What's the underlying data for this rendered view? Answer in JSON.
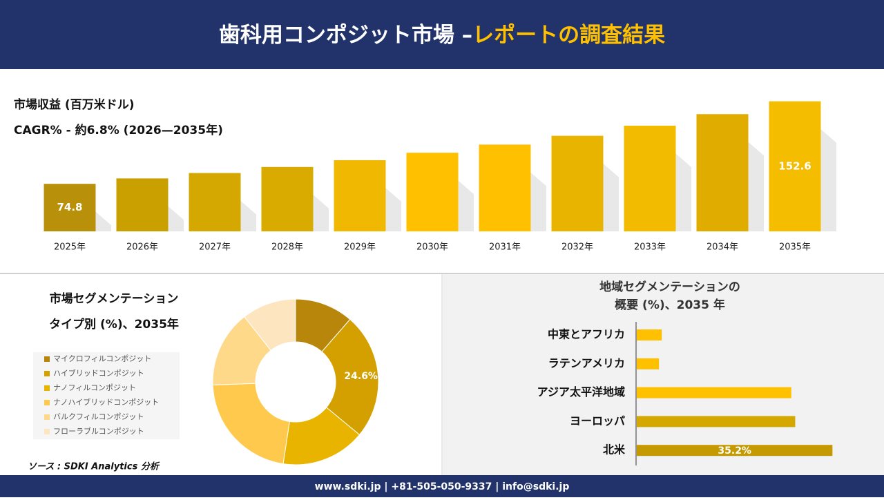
{
  "header": {
    "title_main": "歯科用コンポジット市場 –",
    "title_highlight": "レポートの調査結果"
  },
  "chart_data": [
    {
      "type": "bar",
      "title": "市場収益 (百万米ドル)",
      "subtitle": "CAGR% - 約6.8% (2026—2035年)",
      "categories": [
        "2025年",
        "2026年",
        "2027年",
        "2028年",
        "2029年",
        "2030年",
        "2031年",
        "2032年",
        "2033年",
        "2034年",
        "2035年"
      ],
      "values": [
        74.8,
        79.9,
        85.0,
        90.7,
        97.1,
        104.1,
        111.8,
        120.1,
        129.6,
        140.5,
        152.6
      ],
      "value_labels": [
        "74.8",
        null,
        null,
        null,
        null,
        null,
        null,
        null,
        null,
        null,
        "152.6"
      ],
      "colors": [
        "#b8900a",
        "#c9a000",
        "#d4a800",
        "#d9ab00",
        "#f0b800",
        "#ffc000",
        "#ffc000",
        "#e8b400",
        "#f2bb00",
        "#e0ac00",
        "#f5bd00"
      ],
      "ylim": [
        30,
        155
      ]
    },
    {
      "type": "donut",
      "title": "市場セグメンテーション",
      "subtitle": "タイプ別 (%)、2035年",
      "categories": [
        "マイクロフィルコンポジット",
        "ハイブリッドコンポジット",
        "ナノフィルコンポジット",
        "ナノハイブリッドコンポジット",
        "バルクフィルコンポジット",
        "フローラブルコンポジット"
      ],
      "values": [
        11.4,
        24.6,
        16.4,
        22.0,
        15.0,
        10.6
      ],
      "value_labels": [
        null,
        "24.6%",
        null,
        null,
        null,
        null
      ],
      "colors": [
        "#b8860b",
        "#d4a000",
        "#e8b400",
        "#ffc94d",
        "#ffd98a",
        "#fde5c0"
      ]
    },
    {
      "type": "barh",
      "title": [
        "地域セグメンテーションの",
        "概要 (%)、2035 年"
      ],
      "categories": [
        "中東とアフリカ",
        "ラテンアメリカ",
        "アジア太平洋地域",
        "ヨーロッパ",
        "北米"
      ],
      "values": [
        4.5,
        4.0,
        27.8,
        28.5,
        35.2
      ],
      "value_labels": [
        null,
        null,
        null,
        null,
        "35.2%"
      ],
      "colors": [
        "#ffc000",
        "#ffc000",
        "#ffc000",
        "#d4a800",
        "#c49a00"
      ],
      "xlim": [
        0,
        40
      ]
    }
  ],
  "source": "ソース : SDKI Analytics 分析",
  "footer": "www.sdki.jp | +81-505-050-9337 | info@sdki.jp"
}
